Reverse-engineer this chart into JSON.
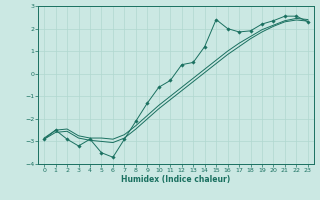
{
  "xlabel": "Humidex (Indice chaleur)",
  "ylabel": "",
  "bg_color": "#cbe8e3",
  "grid_color": "#b0d8d0",
  "line_color": "#1a7060",
  "xlim": [
    -0.5,
    23.5
  ],
  "ylim": [
    -4,
    3
  ],
  "xticks": [
    0,
    1,
    2,
    3,
    4,
    5,
    6,
    7,
    8,
    9,
    10,
    11,
    12,
    13,
    14,
    15,
    16,
    17,
    18,
    19,
    20,
    21,
    22,
    23
  ],
  "yticks": [
    -4,
    -3,
    -2,
    -1,
    0,
    1,
    2,
    3
  ],
  "data_x": [
    0,
    1,
    2,
    3,
    4,
    5,
    6,
    7,
    8,
    9,
    10,
    11,
    12,
    13,
    14,
    15,
    16,
    17,
    18,
    19,
    20,
    21,
    22,
    23
  ],
  "data_y1": [
    -2.9,
    -2.5,
    -2.9,
    -3.2,
    -2.9,
    -3.5,
    -3.7,
    -2.9,
    -2.1,
    -1.3,
    -0.6,
    -0.3,
    0.4,
    0.5,
    1.2,
    2.4,
    2.0,
    1.85,
    1.9,
    2.2,
    2.35,
    2.55,
    2.55,
    2.3
  ],
  "data_y2": [
    -2.85,
    -2.5,
    -2.45,
    -2.75,
    -2.85,
    -2.85,
    -2.9,
    -2.7,
    -2.3,
    -1.85,
    -1.4,
    -1.0,
    -0.6,
    -0.2,
    0.2,
    0.6,
    1.0,
    1.35,
    1.65,
    1.95,
    2.15,
    2.35,
    2.45,
    2.4
  ],
  "data_y3": [
    -2.9,
    -2.6,
    -2.55,
    -2.85,
    -2.95,
    -3.0,
    -3.05,
    -2.85,
    -2.45,
    -2.0,
    -1.55,
    -1.15,
    -0.75,
    -0.35,
    0.05,
    0.45,
    0.85,
    1.2,
    1.55,
    1.85,
    2.1,
    2.3,
    2.38,
    2.33
  ]
}
